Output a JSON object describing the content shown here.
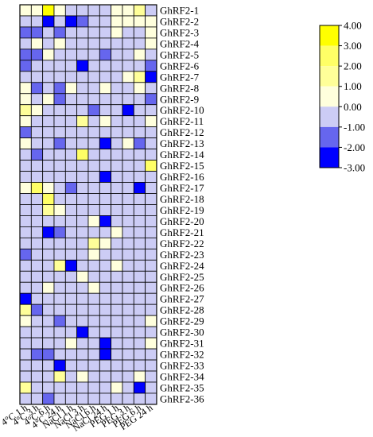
{
  "chart_data": {
    "type": "heatmap",
    "title": "",
    "columns": [
      "4°C 1 h",
      "4°C 3 h",
      "4°C 6 h",
      "4°C 24 h",
      "NaCl 1 h",
      "NaCl 3 h",
      "NaCl 6 h",
      "NaCl 24 h",
      "PEG 1 h",
      "PEG 3 h",
      "PEG 6 h",
      "PEG 24 h"
    ],
    "rows": [
      "GhRF2-1",
      "GhRF2-2",
      "GhRF2-3",
      "GhRF2-4",
      "GhRF2-5",
      "GhRF2-6",
      "GhRF2-7",
      "GhRF2-8",
      "GhRF2-9",
      "GhRF2-10",
      "GhRF2-11",
      "GhRF2-12",
      "GhRF2-13",
      "GhRF2-14",
      "GhRF2-15",
      "GhRF2-16",
      "GhRF2-17",
      "GhRF2-18",
      "GhRF2-19",
      "GhRF2-20",
      "GhRF2-21",
      "GhRF2-22",
      "GhRF2-23",
      "GhRF2-24",
      "GhRF2-25",
      "GhRF2-26",
      "GhRF2-27",
      "GhRF2-28",
      "GhRF2-29",
      "GhRF2-30",
      "GhRF2-31",
      "GhRF2-32",
      "GhRF2-33",
      "GhRF2-34",
      "GhRF2-35",
      "GhRF2-36"
    ],
    "values": [
      [
        0.5,
        0.5,
        3.5,
        0.5,
        -0.5,
        -0.5,
        -0.5,
        -0.5,
        0.5,
        0.5,
        1.5,
        -0.5
      ],
      [
        -0.5,
        -0.5,
        -2.5,
        -0.5,
        -2.5,
        -1.5,
        -0.5,
        -0.5,
        0.5,
        0.5,
        0.5,
        0.5
      ],
      [
        -1.5,
        -1.5,
        -0.5,
        -1.5,
        -0.5,
        -0.5,
        -0.5,
        -0.5,
        0.5,
        -0.5,
        -0.5,
        0.5
      ],
      [
        -0.5,
        0.5,
        -0.5,
        0.5,
        -0.5,
        -0.5,
        -0.5,
        -0.5,
        -0.5,
        -0.5,
        -0.5,
        0.5
      ],
      [
        -1.5,
        -1.5,
        0.5,
        -0.5,
        -0.5,
        -0.5,
        -0.5,
        -1.5,
        -0.5,
        -0.5,
        0.5,
        -0.5
      ],
      [
        -1.5,
        -0.5,
        -0.5,
        -0.5,
        -0.5,
        -2.5,
        -0.5,
        -0.5,
        -0.5,
        -0.5,
        -0.5,
        -1.5
      ],
      [
        -0.5,
        -0.5,
        -0.5,
        -0.5,
        -0.5,
        -0.5,
        -0.5,
        -0.5,
        -0.5,
        0.5,
        1.5,
        -2.5
      ],
      [
        0.5,
        -1.5,
        -0.5,
        -1.5,
        0.5,
        -0.5,
        -0.5,
        0.5,
        -0.5,
        -0.5,
        0.5,
        -0.5
      ],
      [
        0.5,
        -0.5,
        0.5,
        -1.5,
        -0.5,
        -0.5,
        -0.5,
        -0.5,
        -0.5,
        -0.5,
        -0.5,
        -1.5
      ],
      [
        1.5,
        0.5,
        -0.5,
        -0.5,
        -0.5,
        -0.5,
        -1.5,
        -0.5,
        -0.5,
        -2.5,
        -0.5,
        -0.5
      ],
      [
        0.5,
        -0.5,
        -0.5,
        -0.5,
        -0.5,
        1.5,
        -0.5,
        0.5,
        -0.5,
        -0.5,
        -0.5,
        0.5
      ],
      [
        -1.5,
        -0.5,
        -0.5,
        -0.5,
        -0.5,
        -0.5,
        -0.5,
        -0.5,
        -0.5,
        -0.5,
        -0.5,
        -0.5
      ],
      [
        0.5,
        -0.5,
        -0.5,
        -1.5,
        -0.5,
        -0.5,
        -0.5,
        -2.5,
        -0.5,
        0.5,
        -1.5,
        -0.5
      ],
      [
        -0.5,
        -1.5,
        -0.5,
        -0.5,
        -0.5,
        2.5,
        -0.5,
        -0.5,
        -0.5,
        -0.5,
        -0.5,
        -0.5
      ],
      [
        -0.5,
        -0.5,
        -0.5,
        -0.5,
        -0.5,
        -0.5,
        -0.5,
        -0.5,
        -0.5,
        -0.5,
        -0.5,
        2.5
      ],
      [
        -0.5,
        -0.5,
        -0.5,
        -0.5,
        -0.5,
        -0.5,
        -0.5,
        -2.5,
        -0.5,
        -0.5,
        -0.5,
        -0.5
      ],
      [
        0.5,
        2.5,
        0.5,
        -0.5,
        -1.5,
        -0.5,
        -0.5,
        -0.5,
        -0.5,
        -0.5,
        -2.5,
        -0.5
      ],
      [
        -0.5,
        -0.5,
        2.5,
        -0.5,
        -0.5,
        -0.5,
        -0.5,
        -0.5,
        -0.5,
        -0.5,
        -0.5,
        -0.5
      ],
      [
        -0.5,
        -0.5,
        1.5,
        0.5,
        -0.5,
        -0.5,
        -0.5,
        -0.5,
        -0.5,
        -0.5,
        -0.5,
        -0.5
      ],
      [
        -0.5,
        -0.5,
        -0.5,
        -0.5,
        -0.5,
        -0.5,
        0.5,
        -2.5,
        -0.5,
        -0.5,
        -0.5,
        -0.5
      ],
      [
        -0.5,
        -0.5,
        -2.5,
        -1.5,
        -0.5,
        -0.5,
        -0.5,
        -0.5,
        0.5,
        -0.5,
        -0.5,
        -0.5
      ],
      [
        -0.5,
        -0.5,
        -0.5,
        -0.5,
        -0.5,
        -0.5,
        1.5,
        0.5,
        -0.5,
        -0.5,
        -0.5,
        -0.5
      ],
      [
        -1.5,
        -0.5,
        -0.5,
        -0.5,
        -0.5,
        -0.5,
        0.5,
        -0.5,
        -0.5,
        -0.5,
        -0.5,
        -0.5
      ],
      [
        -0.5,
        -0.5,
        -0.5,
        1.5,
        -2.5,
        -0.5,
        -0.5,
        -0.5,
        0.5,
        -0.5,
        -0.5,
        -0.5
      ],
      [
        -0.5,
        -0.5,
        -0.5,
        -0.5,
        -0.5,
        0.5,
        -0.5,
        -0.5,
        -0.5,
        -0.5,
        -0.5,
        -0.5
      ],
      [
        -0.5,
        -0.5,
        0.5,
        -0.5,
        -0.5,
        -0.5,
        0.5,
        -0.5,
        -0.5,
        -0.5,
        -0.5,
        -0.5
      ],
      [
        -2.5,
        -0.5,
        -0.5,
        -0.5,
        -0.5,
        -0.5,
        -0.5,
        -0.5,
        -0.5,
        -0.5,
        -0.5,
        -0.5
      ],
      [
        1.5,
        -1.5,
        -0.5,
        -0.5,
        -0.5,
        -0.5,
        -0.5,
        -0.5,
        -0.5,
        -0.5,
        -0.5,
        -0.5
      ],
      [
        0.5,
        -0.5,
        -0.5,
        -1.5,
        -0.5,
        -0.5,
        -0.5,
        -0.5,
        -0.5,
        -0.5,
        -0.5,
        0.5
      ],
      [
        -0.5,
        -0.5,
        -0.5,
        -0.5,
        -0.5,
        -2.5,
        -0.5,
        -0.5,
        -0.5,
        -0.5,
        -0.5,
        -0.5
      ],
      [
        -0.5,
        -0.5,
        -0.5,
        -0.5,
        0.5,
        -0.5,
        -0.5,
        -2.5,
        -0.5,
        -0.5,
        -0.5,
        0.5
      ],
      [
        -0.5,
        -1.5,
        -1.5,
        -0.5,
        -0.5,
        -0.5,
        -0.5,
        -2.5,
        -0.5,
        -0.5,
        -0.5,
        -0.5
      ],
      [
        -0.5,
        -0.5,
        -0.5,
        -2.5,
        -0.5,
        -0.5,
        -0.5,
        -0.5,
        -0.5,
        -0.5,
        -0.5,
        -0.5
      ],
      [
        -0.5,
        -0.5,
        -0.5,
        1.5,
        -0.5,
        0.5,
        -0.5,
        -0.5,
        -0.5,
        -0.5,
        0.5,
        -0.5
      ],
      [
        1.5,
        -0.5,
        -0.5,
        -0.5,
        -0.5,
        -0.5,
        -0.5,
        -0.5,
        0.5,
        -0.5,
        -2.5,
        -0.5
      ],
      [
        -0.5,
        -0.5,
        -1.5,
        -0.5,
        -0.5,
        -0.5,
        -0.5,
        -0.5,
        -0.5,
        -0.5,
        -0.5,
        -0.5
      ]
    ],
    "color_scale": {
      "min": -3,
      "max": 4,
      "ticks": [
        "4.00",
        "3.00",
        "2.00",
        "1.00",
        "0.00",
        "-1.00",
        "-2.00",
        "-3.00"
      ],
      "bins": [
        {
          "from": 3,
          "to": 4,
          "color": "#ffff00"
        },
        {
          "from": 2,
          "to": 3,
          "color": "#ffff66"
        },
        {
          "from": 1,
          "to": 2,
          "color": "#ffff99"
        },
        {
          "from": 0,
          "to": 1,
          "color": "#ffffdd"
        },
        {
          "from": -1,
          "to": 0,
          "color": "#ccccf5"
        },
        {
          "from": -2,
          "to": -1,
          "color": "#6666ee"
        },
        {
          "from": -3,
          "to": -2,
          "color": "#0000ff"
        }
      ]
    }
  }
}
